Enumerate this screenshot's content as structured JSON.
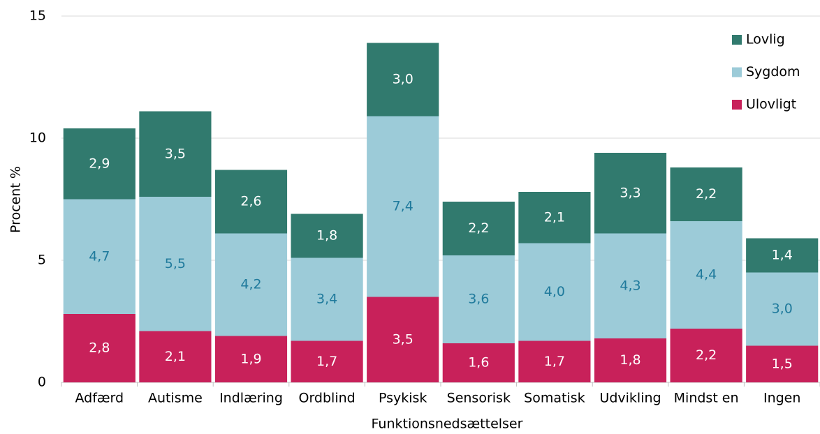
{
  "chart_data": {
    "type": "stacked_bar",
    "xlabel": "Funktionsnedsættelser",
    "ylabel": "Procent %",
    "categories": [
      "Adfærd",
      "Autisme",
      "Indlæring",
      "Ordblind",
      "Psykisk",
      "Sensorisk",
      "Somatisk",
      "Udvikling",
      "Mindst en",
      "Ingen"
    ],
    "series": [
      {
        "name": "Ulovligt",
        "color": "#c8215a",
        "values": [
          2.8,
          2.1,
          1.9,
          1.7,
          3.5,
          1.6,
          1.7,
          1.8,
          2.2,
          1.5
        ],
        "value_labels": [
          "2,8",
          "2,1",
          "1,9",
          "1,7",
          "3,5",
          "1,6",
          "1,7",
          "1,8",
          "2,2",
          "1,5"
        ]
      },
      {
        "name": "Sygdom",
        "color": "#9ccbd8",
        "values": [
          4.7,
          5.5,
          4.2,
          3.4,
          7.4,
          3.6,
          4.0,
          4.3,
          4.4,
          3.0
        ],
        "value_labels": [
          "4,7",
          "5,5",
          "4,2",
          "3,4",
          "7,4",
          "3,6",
          "4,0",
          "4,3",
          "4,4",
          "3,0"
        ]
      },
      {
        "name": "Lovlig",
        "color": "#317a6e",
        "values": [
          2.9,
          3.5,
          2.6,
          1.8,
          3.0,
          2.2,
          2.1,
          3.3,
          2.2,
          1.4
        ],
        "value_labels": [
          "2,9",
          "3,5",
          "2,6",
          "1,8",
          "3,0",
          "2,2",
          "2,1",
          "3,3",
          "2,2",
          "1,4"
        ]
      }
    ],
    "ylim": [
      0,
      15
    ],
    "yticks": [
      0,
      5,
      10,
      15
    ],
    "grid": true,
    "legend": "upper right"
  }
}
